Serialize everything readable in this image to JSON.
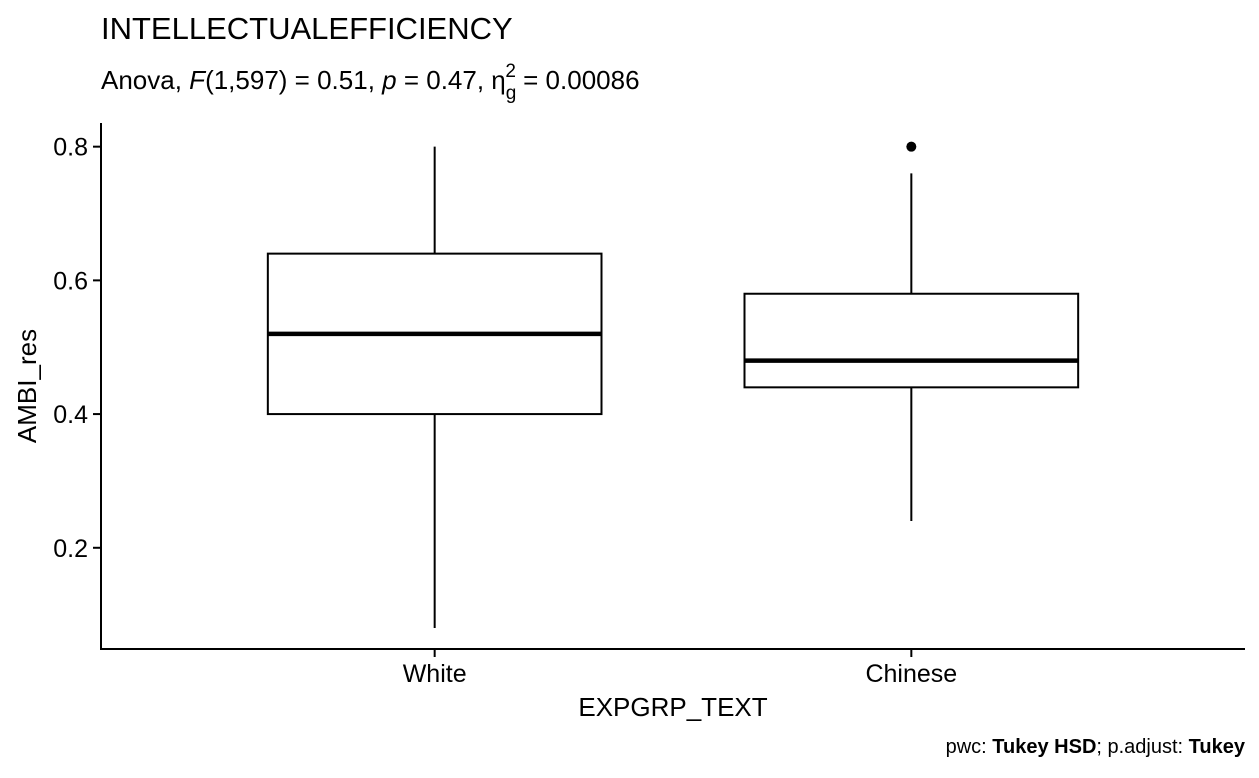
{
  "chart_data": {
    "type": "box",
    "title": "INTELLECTUALEFFICIENCY",
    "subtitle": {
      "prefix": "Anova, ",
      "stat_name": "F",
      "dof": "(1,597)",
      "stat_value": " = 0.51, ",
      "p_symbol": "p",
      "p_value": " = 0.47, ",
      "effect_symbol": "η",
      "effect_sub": "g",
      "effect_sup": "2",
      "effect_value": " = 0.00086"
    },
    "xlabel": "EXPGRP_TEXT",
    "ylabel": "AMBI_res",
    "categories": [
      "White",
      "Chinese"
    ],
    "boxes": [
      {
        "category": "White",
        "whisker_low": 0.08,
        "q1": 0.4,
        "median": 0.52,
        "q3": 0.64,
        "whisker_high": 0.8,
        "outliers": []
      },
      {
        "category": "Chinese",
        "whisker_low": 0.24,
        "q1": 0.44,
        "median": 0.48,
        "q3": 0.58,
        "whisker_high": 0.76,
        "outliers": [
          0.8
        ]
      }
    ],
    "y_ticks": [
      0.2,
      0.4,
      0.6,
      0.8
    ],
    "y_tick_labels": [
      "0.2",
      "0.4",
      "0.6",
      "0.8"
    ],
    "ylim": [
      0.0486,
      0.8354
    ],
    "grid": false,
    "caption": {
      "pwc_label": "pwc: ",
      "pwc_value": "Tukey HSD",
      "sep": "; p.adjust: ",
      "adjust_value": "Tukey"
    }
  }
}
